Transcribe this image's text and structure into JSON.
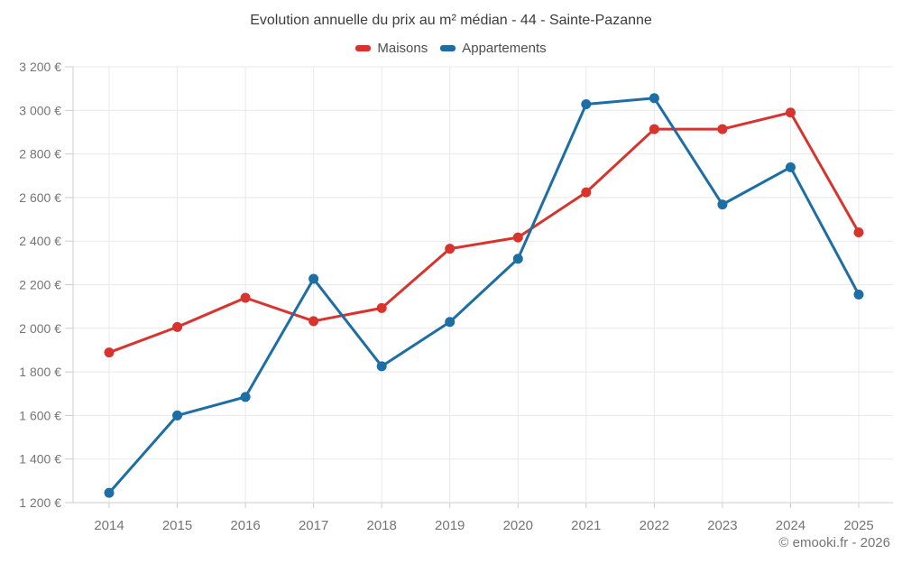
{
  "header": {
    "title": "Evolution annuelle du prix au m² médian - 44 - Sainte-Pazanne"
  },
  "legend": {
    "items": [
      {
        "label": "Maisons",
        "color": "#d7342e"
      },
      {
        "label": "Appartements",
        "color": "#1c6ea4"
      }
    ]
  },
  "footer": {
    "attribution": "© emooki.fr - 2026"
  },
  "style": {
    "grid_line": "#e8e8e8",
    "axis_line": "#cccccc",
    "tick_text": "#757575",
    "background": "#ffffff",
    "title_text": "#3c3c3c",
    "marker_radius": 5.5,
    "line_width": 3
  },
  "chart_data": {
    "type": "line",
    "title": "Evolution annuelle du prix au m² médian - 44 - Sainte-Pazanne",
    "xlabel": "",
    "ylabel": "",
    "grid": true,
    "legend_position": "top",
    "categories": [
      "2014",
      "2015",
      "2016",
      "2017",
      "2018",
      "2019",
      "2020",
      "2021",
      "2022",
      "2023",
      "2024",
      "2025"
    ],
    "series": [
      {
        "name": "Maisons",
        "color": "#d7342e",
        "values": [
          1889,
          2006,
          2140,
          2033,
          2093,
          2365,
          2417,
          2624,
          2914,
          2914,
          2990,
          2440
        ]
      },
      {
        "name": "Appartements",
        "color": "#1c6ea4",
        "values": [
          1245,
          1600,
          1685,
          2227,
          1826,
          2029,
          2319,
          3028,
          3056,
          2568,
          2739,
          2155
        ]
      }
    ],
    "ylim": [
      1200,
      3200
    ],
    "y_tick_step": 200,
    "y_ticks": [
      {
        "value": 3200,
        "label": "3 200 €"
      },
      {
        "value": 3000,
        "label": "3 000 €"
      },
      {
        "value": 2800,
        "label": "2 800 €"
      },
      {
        "value": 2600,
        "label": "2 600 €"
      },
      {
        "value": 2400,
        "label": "2 400 €"
      },
      {
        "value": 2200,
        "label": "2 200 €"
      },
      {
        "value": 2000,
        "label": "2 000 €"
      },
      {
        "value": 1800,
        "label": "1 800 €"
      },
      {
        "value": 1600,
        "label": "1 600 €"
      },
      {
        "value": 1400,
        "label": "1 400 €"
      },
      {
        "value": 1200,
        "label": "1 200 €"
      }
    ]
  }
}
